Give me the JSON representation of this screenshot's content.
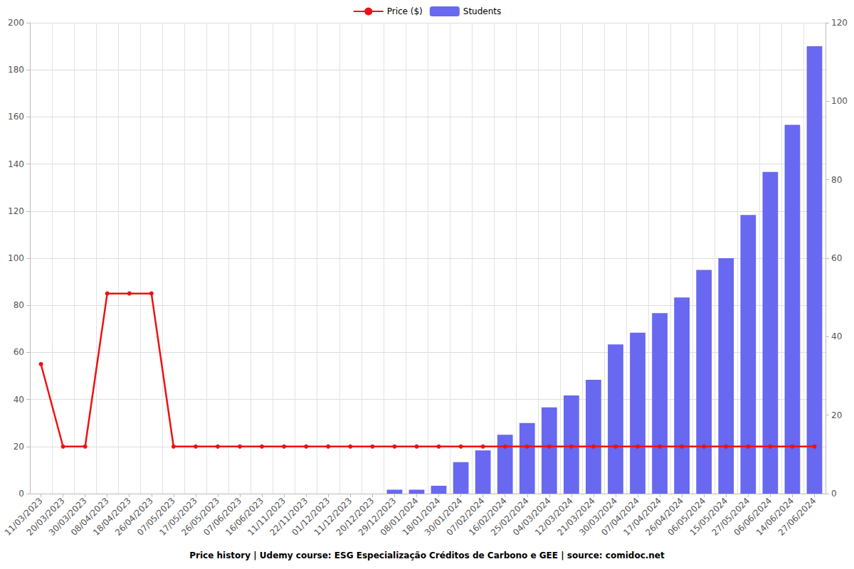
{
  "chart_data": {
    "type": "bar",
    "title": "Price history | Udemy course: ESG Especialização Créditos de Carbono e GEE | source: comidoc.net",
    "categories": [
      "11/03/2023",
      "20/03/2023",
      "30/03/2023",
      "08/04/2023",
      "18/04/2023",
      "26/04/2023",
      "07/05/2023",
      "17/05/2023",
      "26/05/2023",
      "07/06/2023",
      "16/06/2023",
      "11/11/2023",
      "22/11/2023",
      "01/12/2023",
      "11/12/2023",
      "20/12/2023",
      "29/12/2023",
      "08/01/2024",
      "18/01/2024",
      "30/01/2024",
      "07/02/2024",
      "16/02/2024",
      "25/02/2024",
      "04/03/2024",
      "12/03/2024",
      "21/03/2024",
      "30/03/2024",
      "07/04/2024",
      "17/04/2024",
      "26/04/2024",
      "06/05/2024",
      "15/05/2024",
      "27/05/2024",
      "06/06/2024",
      "14/06/2024",
      "27/06/2024"
    ],
    "series": [
      {
        "name": "Price ($)",
        "type": "line",
        "color": "#ee1111",
        "marker": "circle",
        "values": [
          55,
          20,
          20,
          85,
          85,
          85,
          20,
          20,
          20,
          20,
          20,
          20,
          20,
          20,
          20,
          20,
          20,
          20,
          20,
          20,
          20,
          20,
          20,
          20,
          20,
          20,
          20,
          20,
          20,
          20,
          20,
          20,
          20,
          20,
          20,
          20
        ]
      },
      {
        "name": "Students",
        "type": "bar",
        "color": "#6868f0",
        "axis": "y2",
        "values": [
          0,
          0,
          0,
          0,
          0,
          0,
          0,
          0,
          0,
          0,
          0,
          0,
          0,
          0,
          0,
          0,
          1,
          1,
          2,
          8,
          11,
          15,
          18,
          22,
          25,
          29,
          38,
          41,
          46,
          50,
          57,
          60,
          71,
          82,
          94,
          114
        ]
      }
    ],
    "ylim": [
      0,
      200
    ],
    "yticks": [
      0,
      20,
      40,
      60,
      80,
      100,
      120,
      140,
      160,
      180,
      200
    ],
    "y2lim": [
      0,
      120
    ],
    "y2ticks": [
      0,
      20,
      40,
      60,
      80,
      100,
      120
    ],
    "grid": true,
    "legend": "top"
  }
}
